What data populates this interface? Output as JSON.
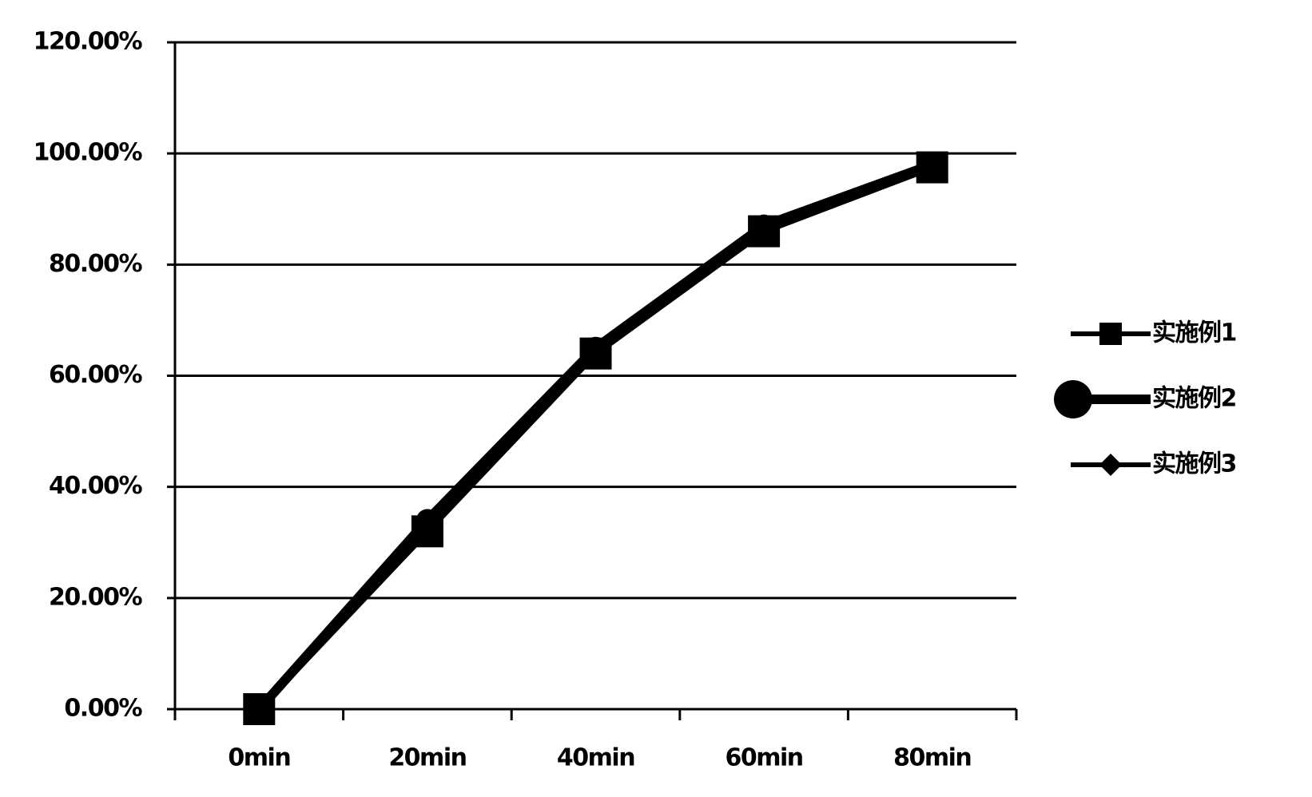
{
  "chart_data": {
    "type": "line",
    "categories": [
      "0min",
      "20min",
      "40min",
      "60min",
      "80min"
    ],
    "series": [
      {
        "name": "实施例1",
        "color": "#000000",
        "marker": "square",
        "values": [
          0,
          32,
          64,
          86,
          97.5
        ]
      },
      {
        "name": "实施例2",
        "color": "#000000",
        "marker": "circle",
        "values": [
          0,
          34,
          65,
          87,
          98
        ]
      },
      {
        "name": "实施例3",
        "color": "#000000",
        "marker": "diamond",
        "values": [
          0,
          33,
          65,
          87,
          98
        ]
      }
    ],
    "ylim": [
      0,
      120
    ],
    "yticks": [
      {
        "value": 0,
        "label": "0.00%"
      },
      {
        "value": 20,
        "label": "20.00%"
      },
      {
        "value": 40,
        "label": "40.00%"
      },
      {
        "value": 60,
        "label": "60.00%"
      },
      {
        "value": 80,
        "label": "80.00%"
      },
      {
        "value": 100,
        "label": "100.00%"
      },
      {
        "value": 120,
        "label": "120.00%"
      }
    ],
    "grid": true,
    "legend": "right"
  }
}
